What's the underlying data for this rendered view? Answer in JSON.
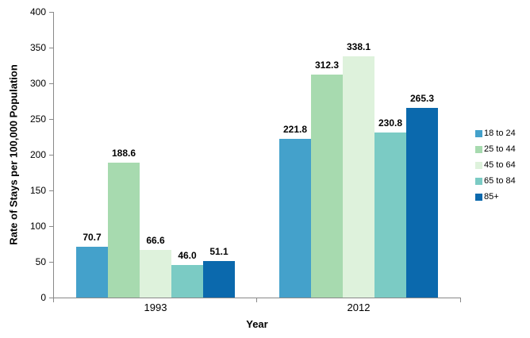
{
  "chart_data": {
    "type": "bar",
    "title": "",
    "xlabel": "Year",
    "ylabel": "Rate of Stays per 100,000 Population",
    "categories": [
      "1993",
      "2012"
    ],
    "series": [
      {
        "name": "18 to 24",
        "color": "#44A1CB",
        "values": [
          70.7,
          221.8
        ]
      },
      {
        "name": "25 to 44",
        "color": "#A7DAAF",
        "values": [
          188.6,
          312.3
        ]
      },
      {
        "name": "45 to 64",
        "color": "#DEF2DC",
        "values": [
          66.6,
          338.1
        ]
      },
      {
        "name": "65 to 84",
        "color": "#7BCBC4",
        "values": [
          46.0,
          230.8
        ]
      },
      {
        "name": "85+",
        "color": "#0B69AD",
        "values": [
          51.1,
          265.3
        ]
      }
    ],
    "ylim": [
      0,
      400
    ],
    "ytick_step": 50,
    "ytick_labels": [
      "0",
      "50",
      "100",
      "150",
      "200",
      "250",
      "300",
      "350",
      "400"
    ],
    "data_labels": true,
    "grid": false,
    "legend_position": "right",
    "axis_color": "#898989",
    "text_color": "#000000",
    "background_color": "#FFFFFF"
  }
}
